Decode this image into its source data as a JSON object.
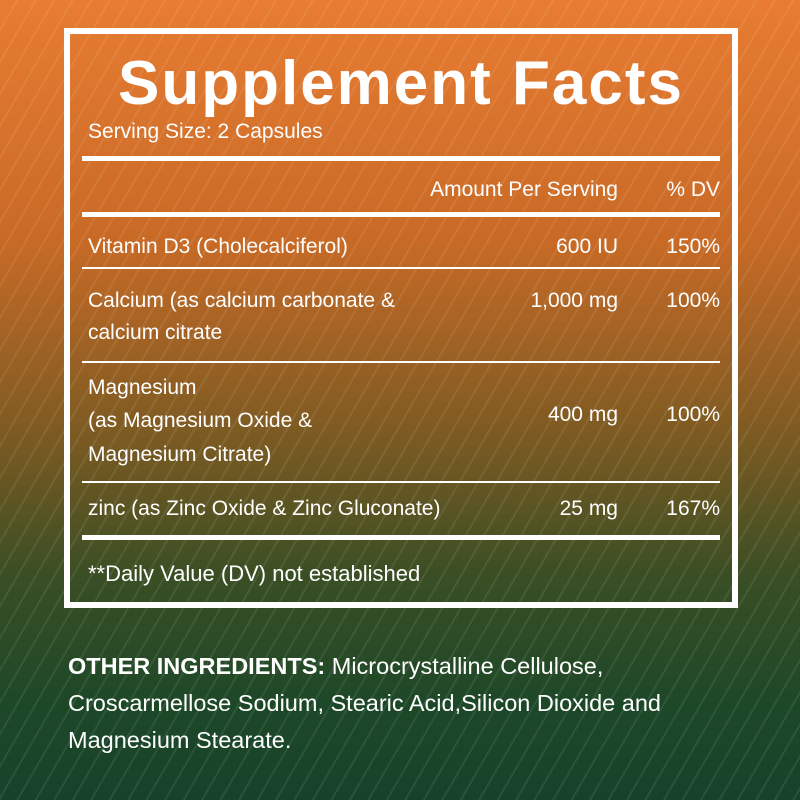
{
  "title": "Supplement Facts",
  "serving_size": "Serving Size: 2 Capsules",
  "columns": {
    "amount": "Amount Per Serving",
    "dv": "% DV"
  },
  "rows": [
    {
      "name_lines": [
        "Vitamin D3 (Cholecalciferol)"
      ],
      "amount": "600 IU",
      "dv": "150%"
    },
    {
      "name_lines": [
        "Calcium (as calcium carbonate &",
        "calcium citrate"
      ],
      "amount": "1,000 mg",
      "dv": "100%"
    },
    {
      "name_lines": [
        "Magnesium",
        " (as Magnesium Oxide &",
        " Magnesium Citrate)"
      ],
      "amount": "400 mg",
      "dv": "100%"
    },
    {
      "name_lines": [
        "zinc (as Zinc Oxide & Zinc Gluconate)"
      ],
      "amount": "25 mg",
      "dv": "167%"
    }
  ],
  "footnote": "**Daily Value (DV) not established",
  "other_ingredients": {
    "label": "OTHER INGREDIENTS:",
    "text": " Microcrystalline Cellulose, Croscarmellose Sodium, Stearic Acid,Silicon Dioxide and Magnesium Stearate."
  },
  "colors": {
    "top": "#e87c32",
    "bottom": "#17422a",
    "text": "#ffffff"
  }
}
